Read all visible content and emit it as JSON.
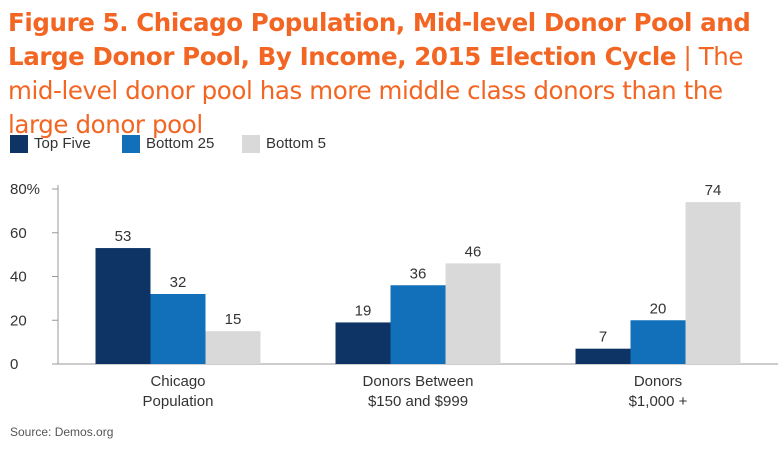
{
  "title": {
    "bold": "Figure 5. Chicago Population, Mid-level Donor Pool and Large Donor Pool, By Income, 2015 Election Cycle",
    "separator": " | ",
    "subtitle": "The mid-level donor pool has more middle class donors than the large donor pool"
  },
  "source": "Source: Demos.org",
  "colors": {
    "accent": "#f26522",
    "axis": "#999999"
  },
  "chart_data": {
    "type": "bar",
    "categories": [
      [
        "Chicago",
        "Population"
      ],
      [
        "Donors Between",
        "$150 and $999"
      ],
      [
        "Donors",
        "$1,000 +"
      ]
    ],
    "series": [
      {
        "name": "Top Five",
        "color": "#0d3465",
        "values": [
          53,
          19,
          7
        ]
      },
      {
        "name": "Bottom 25",
        "color": "#1170b9",
        "values": [
          32,
          36,
          20
        ]
      },
      {
        "name": "Bottom 5",
        "color": "#d9d9d9",
        "values": [
          15,
          46,
          74
        ]
      }
    ],
    "y_ticks": [
      {
        "value": 0,
        "label": "0"
      },
      {
        "value": 20,
        "label": "20"
      },
      {
        "value": 40,
        "label": "40"
      },
      {
        "value": 60,
        "label": "60"
      },
      {
        "value": 80,
        "label": "80%"
      }
    ],
    "ylim": [
      0,
      80
    ],
    "grid": false,
    "legend_position": "top-left"
  }
}
